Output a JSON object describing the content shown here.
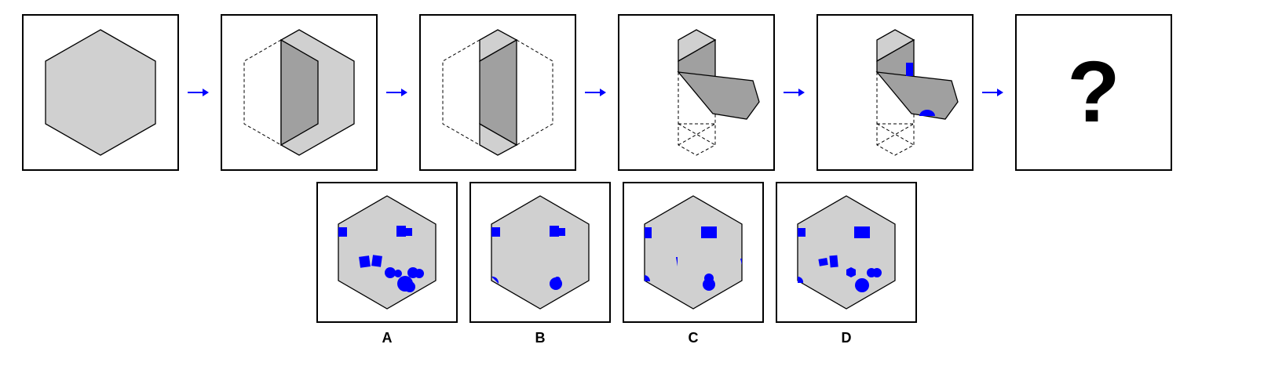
{
  "puzzle": {
    "question_mark": "?",
    "options": [
      {
        "label": "A"
      },
      {
        "label": "B"
      },
      {
        "label": "C"
      },
      {
        "label": "D"
      }
    ]
  },
  "colors": {
    "paper": "#d0d0d0",
    "folded": "#a0a0a0",
    "hole": "#0000ff",
    "arrow": "#0000ff",
    "outline": "#000000"
  },
  "icons": {
    "arrow": "right-arrow-icon"
  }
}
